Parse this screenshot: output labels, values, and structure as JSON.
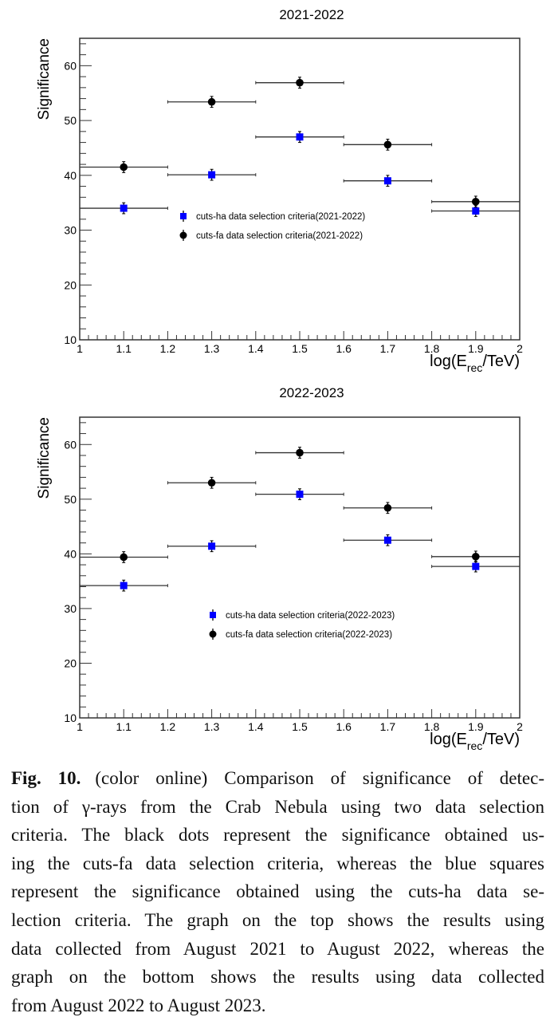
{
  "chart_data": [
    {
      "type": "scatter",
      "title": "2021-2022",
      "xlabel": "log(E_rec/TeV)",
      "xlabel_main": "log(E",
      "xlabel_sub": "rec",
      "xlabel_tail": "/TeV)",
      "ylabel": "Significance",
      "xlim": [
        1,
        2
      ],
      "ylim": [
        10,
        65
      ],
      "xticks": [
        "1",
        "1.1",
        "1.2",
        "1.3",
        "1.4",
        "1.5",
        "1.6",
        "1.7",
        "1.8",
        "1.9",
        "2"
      ],
      "yticks": [
        "10",
        "20",
        "30",
        "40",
        "50",
        "60"
      ],
      "legend_placement": "center",
      "series": [
        {
          "name": "cuts-ha data selection criteria(2021-2022)",
          "marker": "square",
          "color": "#0000ff",
          "x": [
            1.1,
            1.3,
            1.5,
            1.7,
            1.9
          ],
          "x_err": 0.1,
          "y": [
            34.0,
            40.1,
            47.0,
            39.0,
            33.5
          ],
          "y_err": [
            1.0,
            1.0,
            1.0,
            1.0,
            1.0
          ]
        },
        {
          "name": "cuts-fa data selection criteria(2021-2022)",
          "marker": "circle",
          "color": "#000000",
          "x": [
            1.1,
            1.3,
            1.5,
            1.7,
            1.9
          ],
          "x_err": 0.1,
          "y": [
            41.5,
            53.4,
            56.9,
            45.6,
            35.2
          ],
          "y_err": [
            1.0,
            1.0,
            1.0,
            1.0,
            1.0
          ]
        }
      ]
    },
    {
      "type": "scatter",
      "title": "2022-2023",
      "xlabel": "log(E_rec/TeV)",
      "xlabel_main": "log(E",
      "xlabel_sub": "rec",
      "xlabel_tail": "/TeV)",
      "ylabel": "Significance",
      "xlim": [
        1,
        2
      ],
      "ylim": [
        10,
        65
      ],
      "xticks": [
        "1",
        "1.1",
        "1.2",
        "1.3",
        "1.4",
        "1.5",
        "1.6",
        "1.7",
        "1.8",
        "1.9",
        "2"
      ],
      "yticks": [
        "10",
        "20",
        "30",
        "40",
        "50",
        "60"
      ],
      "legend_placement": "center",
      "series": [
        {
          "name": "cuts-ha data selection criteria(2022-2023)",
          "marker": "square",
          "color": "#0000ff",
          "x": [
            1.1,
            1.3,
            1.5,
            1.7,
            1.9
          ],
          "x_err": 0.1,
          "y": [
            34.2,
            41.4,
            50.9,
            42.5,
            37.7
          ],
          "y_err": [
            1.0,
            1.0,
            1.0,
            1.0,
            1.0
          ]
        },
        {
          "name": "cuts-fa data selection criteria(2022-2023)",
          "marker": "circle",
          "color": "#000000",
          "x": [
            1.1,
            1.3,
            1.5,
            1.7,
            1.9
          ],
          "x_err": 0.1,
          "y": [
            39.4,
            53.0,
            58.5,
            48.4,
            39.5
          ],
          "y_err": [
            1.0,
            1.0,
            1.0,
            1.0,
            1.0
          ]
        }
      ]
    }
  ],
  "caption": {
    "label": "Fig. 10.",
    "lines": [
      "(color online) Comparison of significance of detec-",
      "tion of γ-rays from the Crab Nebula using two data selection",
      "criteria. The black dots represent the significance obtained us-",
      "ing the cuts-fa data selection criteria, whereas the blue squares",
      "represent the significance obtained using the cuts-ha data se-",
      "lection criteria. The graph on the top shows the results using",
      "data collected from August 2021 to August 2022, whereas the",
      "graph on the bottom shows the results using data collected",
      "from August 2022 to August 2023."
    ]
  }
}
